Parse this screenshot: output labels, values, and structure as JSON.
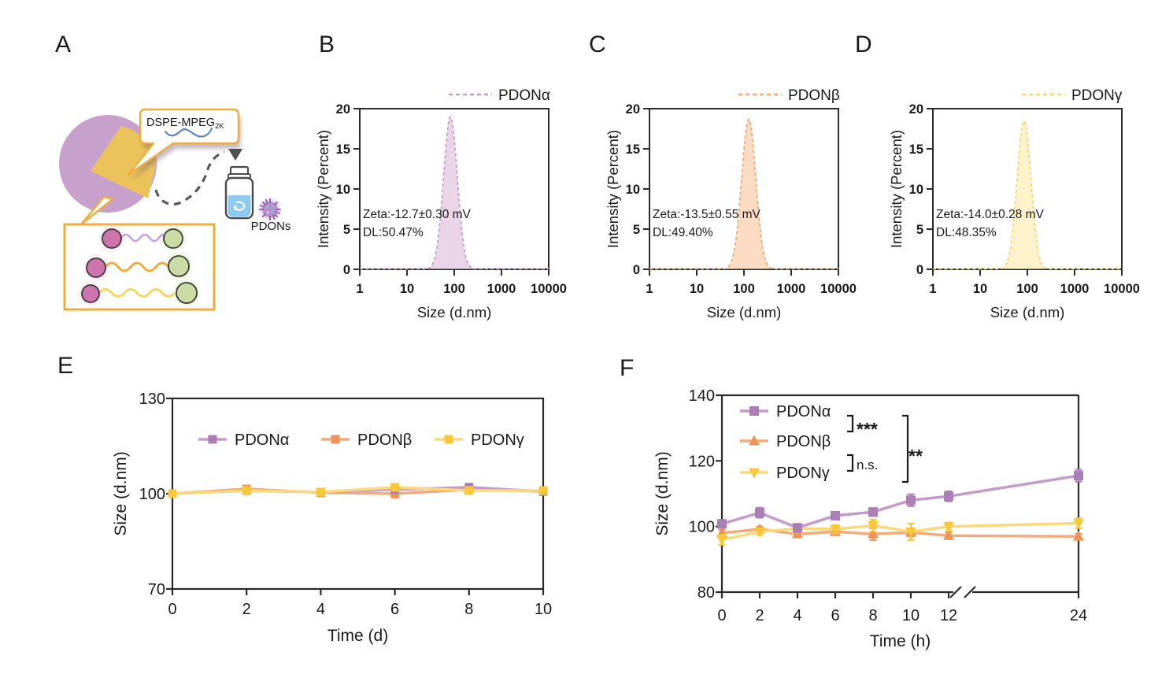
{
  "panel_labels": {
    "a": "A",
    "b": "B",
    "c": "C",
    "d": "D",
    "e": "E",
    "f": "F"
  },
  "panel_a": {
    "bubble_text": "DSPE-MPEG",
    "bubble_subscript": "2K",
    "product_label": "PDONs"
  },
  "colors": {
    "axis": "#2b2b2b",
    "pdon_alpha_marker": "#aa7fb5",
    "pdon_alpha_line": "#c49bca",
    "pdon_beta_marker": "#ef9459",
    "pdon_beta_line": "#f5ab79",
    "pdon_gamma_marker": "#f8c838",
    "pdon_gamma_line": "#fbd878",
    "alpha_area_fill": "#e9d4e8",
    "alpha_area_stroke": "#c79fcb",
    "beta_area_fill": "#fbdcc2",
    "beta_area_stroke": "#f2a878",
    "gamma_area_fill": "#fdf2c9",
    "gamma_area_stroke": "#f6d470",
    "alpha_errorbar_e": "#eba6c9",
    "beta_errorbar_e": "#f5ab79",
    "gamma_errorbar_e": "#86d1c3"
  },
  "chart_data": [
    {
      "panel": "B",
      "type": "area",
      "legend": "PDONα",
      "xlabel": "Size (d.nm)",
      "ylabel": "Intensity (Percent)",
      "x_scale": "log",
      "xticks": [
        1,
        10,
        100,
        1000,
        10000
      ],
      "yticks": [
        0,
        5,
        10,
        15,
        20
      ],
      "ylim": [
        0,
        20
      ],
      "peak": {
        "size_nm": 83,
        "intensity_percent": 19,
        "log_sigma": 0.145
      },
      "annotation": [
        "Zeta:-12.7±0.30 mV",
        "DL:50.47%"
      ]
    },
    {
      "panel": "C",
      "type": "area",
      "legend": "PDONβ",
      "xlabel": "Size (d.nm)",
      "ylabel": "Intensity (Percent)",
      "x_scale": "log",
      "xticks": [
        1,
        10,
        100,
        1000,
        10000
      ],
      "yticks": [
        0,
        5,
        10,
        15,
        20
      ],
      "ylim": [
        0,
        20
      ],
      "peak": {
        "size_nm": 126,
        "intensity_percent": 18.7,
        "log_sigma": 0.15
      },
      "annotation": [
        "Zeta:-13.5±0.55 mV",
        "DL:49.40%"
      ]
    },
    {
      "panel": "D",
      "type": "area",
      "legend": "PDONγ",
      "xlabel": "Size (d.nm)",
      "ylabel": "Intensity (Percent)",
      "x_scale": "log",
      "xticks": [
        1,
        10,
        100,
        1000,
        10000
      ],
      "yticks": [
        0,
        5,
        10,
        15,
        20
      ],
      "ylim": [
        0,
        20
      ],
      "peak": {
        "size_nm": 85,
        "intensity_percent": 18.5,
        "log_sigma": 0.145
      },
      "annotation": [
        "Zeta:-14.0±0.28 mV",
        "DL:48.35%"
      ]
    },
    {
      "panel": "E",
      "type": "line",
      "xlabel": "Time (d)",
      "ylabel": "Size (d.nm)",
      "x": [
        0,
        2,
        4,
        6,
        8,
        10
      ],
      "xticks": [
        0,
        2,
        4,
        6,
        8,
        10
      ],
      "yticks": [
        70,
        100,
        130
      ],
      "ylim": [
        70,
        130
      ],
      "legend_position": "top-inside-horizontal",
      "series": [
        {
          "name": "PDONα",
          "marker": "square",
          "values": [
            100,
            101,
            100.5,
            101.3,
            102,
            100.7
          ],
          "errors": [
            0.8,
            1.2,
            0.8,
            0.8,
            1.2,
            1.0
          ]
        },
        {
          "name": "PDONβ",
          "marker": "square",
          "values": [
            100,
            101.5,
            100.3,
            100,
            101.3,
            100.8
          ],
          "errors": [
            0.8,
            1.0,
            0.8,
            1.2,
            0.8,
            0.8
          ]
        },
        {
          "name": "PDONγ",
          "marker": "square",
          "values": [
            100,
            101,
            100.5,
            102,
            101,
            101
          ],
          "errors": [
            0.8,
            1.0,
            0.8,
            1.0,
            0.8,
            1.0
          ]
        }
      ]
    },
    {
      "panel": "F",
      "type": "line",
      "xlabel": "Time (h)",
      "ylabel": "Size (d.nm)",
      "x": [
        0,
        2,
        4,
        6,
        8,
        10,
        12,
        24
      ],
      "xticks": [
        0,
        2,
        4,
        6,
        8,
        10,
        12,
        24
      ],
      "axis_break_between": [
        12,
        24
      ],
      "yticks": [
        80,
        100,
        120,
        140
      ],
      "ylim": [
        80,
        140
      ],
      "legend_position": "top-left-inside-vertical",
      "series": [
        {
          "name": "PDONα",
          "marker": "square",
          "values": [
            100.8,
            104.2,
            99.6,
            103.3,
            104.4,
            108,
            109.2,
            115.5
          ],
          "errors": [
            1.2,
            1.5,
            1.2,
            1.0,
            1.2,
            1.8,
            1.5,
            1.8
          ]
        },
        {
          "name": "PDONβ",
          "marker": "triangle-up",
          "values": [
            98,
            99.2,
            97.7,
            98.4,
            97.7,
            98.2,
            97.2,
            97
          ],
          "errors": [
            1.0,
            0.8,
            1.0,
            0.8,
            1.8,
            1.2,
            1.0,
            0.8
          ]
        },
        {
          "name": "PDONγ",
          "marker": "triangle-down",
          "values": [
            96,
            98.4,
            99.4,
            99.2,
            100.3,
            98.4,
            100,
            101
          ],
          "errors": [
            1.5,
            1.0,
            1.0,
            1.2,
            1.8,
            2.5,
            1.2,
            1.5
          ]
        }
      ],
      "significance": [
        {
          "pair": [
            "PDONα",
            "PDONβ"
          ],
          "label": "***"
        },
        {
          "pair": [
            "PDONβ",
            "PDONγ"
          ],
          "label": "n.s."
        },
        {
          "pair": [
            "PDONα",
            "PDONγ"
          ],
          "label": "**"
        }
      ]
    }
  ]
}
